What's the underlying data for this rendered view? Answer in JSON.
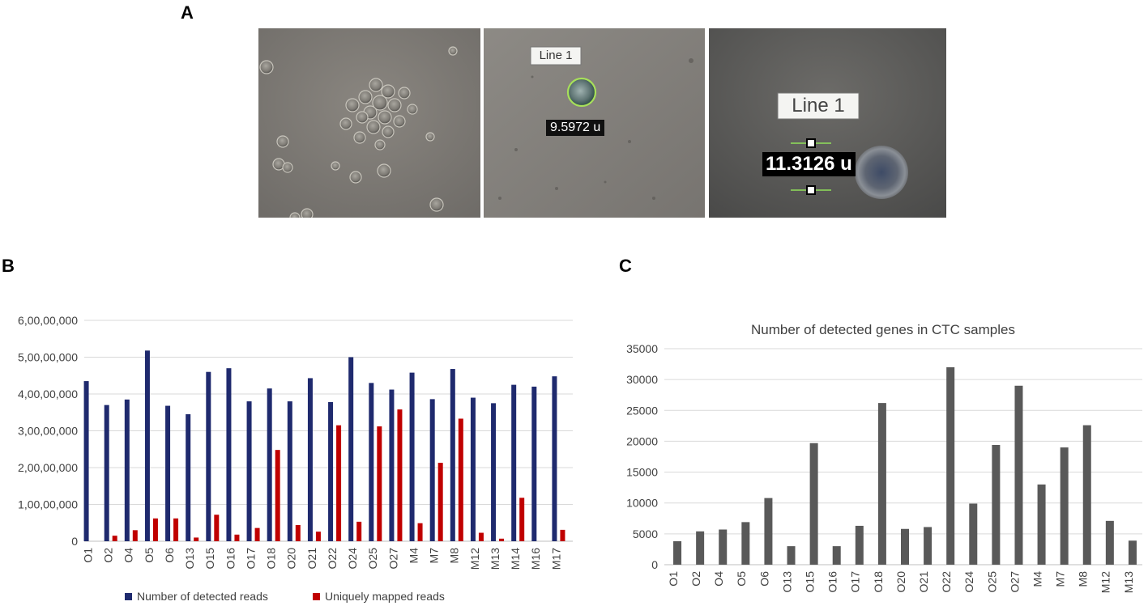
{
  "panels": {
    "a": "A",
    "b": "B",
    "c": "C"
  },
  "photos": {
    "photo2": {
      "line_label": "Line 1",
      "measurement": "9.5972 u"
    },
    "photo3": {
      "line_label": "Line 1",
      "measurement": "11.3126 u"
    }
  },
  "colors": {
    "series_detected": "#1f2a6e",
    "series_mapped": "#c00000",
    "genes_bar": "#595959",
    "grid": "#d9d9d9"
  },
  "chart_data": [
    {
      "type": "bar",
      "title": "",
      "xlabel": "",
      "ylabel": "",
      "ylim": [
        0,
        60000000
      ],
      "yticks": [
        0,
        10000000,
        20000000,
        30000000,
        40000000,
        50000000,
        60000000
      ],
      "ytick_labels": [
        "0",
        "1,00,00,000",
        "2,00,00,000",
        "3,00,00,000",
        "4,00,00,000",
        "5,00,00,000",
        "6,00,00,000"
      ],
      "grid": true,
      "legend": "bottom",
      "categories": [
        "O1",
        "O2",
        "O4",
        "O5",
        "O6",
        "O13",
        "O15",
        "O16",
        "O17",
        "O18",
        "O20",
        "O21",
        "O22",
        "O24",
        "O25",
        "O27",
        "M4",
        "M7",
        "M8",
        "M12",
        "M13",
        "M14",
        "M16",
        "M17"
      ],
      "series": [
        {
          "name": "Number of detected reads",
          "values": [
            43500000,
            37000000,
            38500000,
            51800000,
            36800000,
            34500000,
            46000000,
            47000000,
            38000000,
            41500000,
            38000000,
            44300000,
            37800000,
            50000000,
            43000000,
            41200000,
            45800000,
            38600000,
            46800000,
            39000000,
            37500000,
            42500000,
            42000000,
            44800000
          ]
        },
        {
          "name": "Uniquely mapped reads",
          "values": [
            0,
            1500000,
            3000000,
            6200000,
            6200000,
            1000000,
            7200000,
            1800000,
            3600000,
            24800000,
            4400000,
            2600000,
            31500000,
            5300000,
            31200000,
            35800000,
            4900000,
            21300000,
            33300000,
            2300000,
            700000,
            11800000,
            0,
            3100000
          ]
        }
      ]
    },
    {
      "type": "bar",
      "title": "Number of detected genes in CTC samples",
      "xlabel": "",
      "ylabel": "",
      "ylim": [
        0,
        35000
      ],
      "yticks": [
        0,
        5000,
        10000,
        15000,
        20000,
        25000,
        30000,
        35000
      ],
      "grid": true,
      "legend": "none",
      "categories": [
        "O1",
        "O2",
        "O4",
        "O5",
        "O6",
        "O13",
        "O15",
        "O16",
        "O17",
        "O18",
        "O20",
        "O21",
        "O22",
        "O24",
        "O25",
        "O27",
        "M4",
        "M7",
        "M8",
        "M12",
        "M13"
      ],
      "series": [
        {
          "values": [
            3800,
            5400,
            5700,
            6900,
            10800,
            3000,
            19700,
            3000,
            6300,
            26200,
            5800,
            6100,
            32000,
            9900,
            19400,
            29000,
            13000,
            19000,
            22600,
            7100,
            3900
          ]
        }
      ]
    }
  ]
}
